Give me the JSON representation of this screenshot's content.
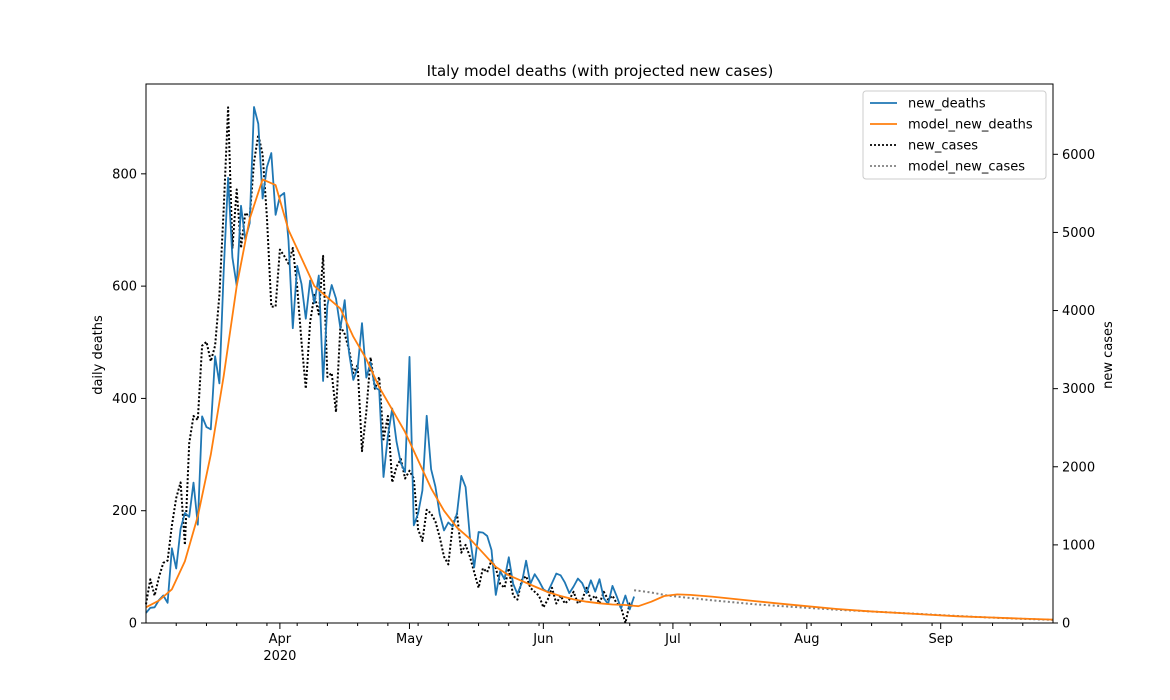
{
  "chart_data": {
    "type": "line",
    "title": "Italy model deaths (with projected new cases)",
    "ylabel": "daily deaths",
    "y2label": "new cases",
    "xlim": [
      "2020-03-01",
      "2020-09-27"
    ],
    "ylim": [
      0,
      960
    ],
    "y2lim": [
      0,
      6900
    ],
    "yticks": [
      0,
      200,
      400,
      600,
      800
    ],
    "y2ticks": [
      0,
      1000,
      2000,
      3000,
      4000,
      5000,
      6000
    ],
    "xticks": [
      {
        "date": "2020-04-01",
        "label": "Apr",
        "sublabel": "2020"
      },
      {
        "date": "2020-05-01",
        "label": "May"
      },
      {
        "date": "2020-06-01",
        "label": "Jun"
      },
      {
        "date": "2020-07-01",
        "label": "Jul"
      },
      {
        "date": "2020-08-01",
        "label": "Aug"
      },
      {
        "date": "2020-09-01",
        "label": "Sep"
      }
    ],
    "grid": false,
    "legend": {
      "position": "top-right",
      "entries": [
        "new_deaths",
        "model_new_deaths",
        "new_cases",
        "model_new_cases"
      ]
    },
    "colors": {
      "new_deaths": "#1f77b4",
      "model_new_deaths": "#ff7f0e",
      "new_cases": "#000000",
      "model_new_cases": "#808080"
    },
    "series": [
      {
        "name": "new_deaths",
        "axis": "left",
        "style": "solid",
        "x": [
          "2020-03-01",
          "2020-03-02",
          "2020-03-03",
          "2020-03-04",
          "2020-03-05",
          "2020-03-06",
          "2020-03-07",
          "2020-03-08",
          "2020-03-09",
          "2020-03-10",
          "2020-03-11",
          "2020-03-12",
          "2020-03-13",
          "2020-03-14",
          "2020-03-15",
          "2020-03-16",
          "2020-03-17",
          "2020-03-18",
          "2020-03-19",
          "2020-03-20",
          "2020-03-21",
          "2020-03-22",
          "2020-03-23",
          "2020-03-24",
          "2020-03-25",
          "2020-03-26",
          "2020-03-27",
          "2020-03-28",
          "2020-03-29",
          "2020-03-30",
          "2020-03-31",
          "2020-04-01",
          "2020-04-02",
          "2020-04-03",
          "2020-04-04",
          "2020-04-05",
          "2020-04-06",
          "2020-04-07",
          "2020-04-08",
          "2020-04-09",
          "2020-04-10",
          "2020-04-11",
          "2020-04-12",
          "2020-04-13",
          "2020-04-14",
          "2020-04-15",
          "2020-04-16",
          "2020-04-17",
          "2020-04-18",
          "2020-04-19",
          "2020-04-20",
          "2020-04-21",
          "2020-04-22",
          "2020-04-23",
          "2020-04-24",
          "2020-04-25",
          "2020-04-26",
          "2020-04-27",
          "2020-04-28",
          "2020-04-29",
          "2020-04-30",
          "2020-05-01",
          "2020-05-02",
          "2020-05-03",
          "2020-05-04",
          "2020-05-05",
          "2020-05-06",
          "2020-05-07",
          "2020-05-08",
          "2020-05-09",
          "2020-05-10",
          "2020-05-11",
          "2020-05-12",
          "2020-05-13",
          "2020-05-14",
          "2020-05-15",
          "2020-05-16",
          "2020-05-17",
          "2020-05-18",
          "2020-05-19",
          "2020-05-20",
          "2020-05-21",
          "2020-05-22",
          "2020-05-23",
          "2020-05-24",
          "2020-05-25",
          "2020-05-26",
          "2020-05-27",
          "2020-05-28",
          "2020-05-29",
          "2020-05-30",
          "2020-05-31",
          "2020-06-01",
          "2020-06-02",
          "2020-06-03",
          "2020-06-04",
          "2020-06-05",
          "2020-06-06",
          "2020-06-07",
          "2020-06-08",
          "2020-06-09",
          "2020-06-10",
          "2020-06-11",
          "2020-06-12",
          "2020-06-13",
          "2020-06-14",
          "2020-06-15",
          "2020-06-16",
          "2020-06-17",
          "2020-06-18",
          "2020-06-19",
          "2020-06-20",
          "2020-06-21",
          "2020-06-22"
        ],
        "values": [
          18,
          27,
          28,
          41,
          49,
          36,
          133,
          97,
          168,
          196,
          189,
          250,
          175,
          368,
          349,
          345,
          475,
          427,
          627,
          793,
          651,
          601,
          743,
          683,
          712,
          919,
          889,
          756,
          812,
          837,
          727,
          760,
          766,
          681,
          525,
          636,
          604,
          542,
          610,
          570,
          619,
          431,
          566,
          602,
          578,
          525,
          575,
          482,
          433,
          454,
          534,
          437,
          464,
          420,
          415,
          260,
          333,
          382,
          323,
          285,
          269,
          474,
          174,
          195,
          236,
          369,
          274,
          243,
          194,
          165,
          179,
          172,
          195,
          262,
          242,
          153,
          99,
          162,
          161,
          155,
          130,
          50,
          92,
          78,
          117,
          70,
          52,
          71,
          111,
          70,
          87,
          75,
          60,
          55,
          71,
          88,
          85,
          72,
          53,
          65,
          79,
          71,
          53,
          76,
          56,
          78,
          44,
          34,
          66,
          47,
          26,
          49,
          24,
          47
        ]
      },
      {
        "name": "model_new_deaths",
        "axis": "left",
        "style": "solid",
        "x": [
          "2020-03-01",
          "2020-03-04",
          "2020-03-07",
          "2020-03-10",
          "2020-03-13",
          "2020-03-16",
          "2020-03-19",
          "2020-03-22",
          "2020-03-25",
          "2020-03-28",
          "2020-03-31",
          "2020-04-03",
          "2020-04-06",
          "2020-04-09",
          "2020-04-12",
          "2020-04-15",
          "2020-04-18",
          "2020-04-21",
          "2020-04-24",
          "2020-04-27",
          "2020-04-30",
          "2020-05-03",
          "2020-05-06",
          "2020-05-09",
          "2020-05-12",
          "2020-05-15",
          "2020-05-18",
          "2020-05-21",
          "2020-05-24",
          "2020-05-27",
          "2020-05-30",
          "2020-06-02",
          "2020-06-05",
          "2020-06-08",
          "2020-06-11",
          "2020-06-14",
          "2020-06-17",
          "2020-06-20",
          "2020-06-23",
          "2020-06-26",
          "2020-06-29",
          "2020-07-02",
          "2020-07-05",
          "2020-07-10",
          "2020-07-15",
          "2020-07-20",
          "2020-07-25",
          "2020-08-01",
          "2020-08-08",
          "2020-08-15",
          "2020-08-22",
          "2020-08-29",
          "2020-09-05",
          "2020-09-12",
          "2020-09-19",
          "2020-09-27"
        ],
        "values": [
          28,
          40,
          60,
          110,
          190,
          300,
          440,
          600,
          720,
          790,
          780,
          700,
          650,
          600,
          580,
          560,
          510,
          470,
          420,
          380,
          340,
          290,
          240,
          200,
          170,
          150,
          125,
          100,
          85,
          75,
          65,
          55,
          48,
          42,
          38,
          35,
          33,
          32,
          30,
          38,
          48,
          51,
          50,
          47,
          43,
          39,
          35,
          30,
          25,
          21,
          18,
          15,
          12,
          10,
          8,
          6
        ]
      },
      {
        "name": "new_cases",
        "axis": "right",
        "style": "dotted",
        "x": [
          "2020-03-01",
          "2020-03-02",
          "2020-03-03",
          "2020-03-04",
          "2020-03-05",
          "2020-03-06",
          "2020-03-07",
          "2020-03-08",
          "2020-03-09",
          "2020-03-10",
          "2020-03-11",
          "2020-03-12",
          "2020-03-13",
          "2020-03-14",
          "2020-03-15",
          "2020-03-16",
          "2020-03-17",
          "2020-03-18",
          "2020-03-19",
          "2020-03-20",
          "2020-03-21",
          "2020-03-22",
          "2020-03-23",
          "2020-03-24",
          "2020-03-25",
          "2020-03-26",
          "2020-03-27",
          "2020-03-28",
          "2020-03-29",
          "2020-03-30",
          "2020-03-31",
          "2020-04-01",
          "2020-04-02",
          "2020-04-03",
          "2020-04-04",
          "2020-04-05",
          "2020-04-06",
          "2020-04-07",
          "2020-04-08",
          "2020-04-09",
          "2020-04-10",
          "2020-04-11",
          "2020-04-12",
          "2020-04-13",
          "2020-04-14",
          "2020-04-15",
          "2020-04-16",
          "2020-04-17",
          "2020-04-18",
          "2020-04-19",
          "2020-04-20",
          "2020-04-21",
          "2020-04-22",
          "2020-04-23",
          "2020-04-24",
          "2020-04-25",
          "2020-04-26",
          "2020-04-27",
          "2020-04-28",
          "2020-04-29",
          "2020-04-30",
          "2020-05-01",
          "2020-05-02",
          "2020-05-03",
          "2020-05-04",
          "2020-05-05",
          "2020-05-06",
          "2020-05-07",
          "2020-05-08",
          "2020-05-09",
          "2020-05-10",
          "2020-05-11",
          "2020-05-12",
          "2020-05-13",
          "2020-05-14",
          "2020-05-15",
          "2020-05-16",
          "2020-05-17",
          "2020-05-18",
          "2020-05-19",
          "2020-05-20",
          "2020-05-21",
          "2020-05-22",
          "2020-05-23",
          "2020-05-24",
          "2020-05-25",
          "2020-05-26",
          "2020-05-27",
          "2020-05-28",
          "2020-05-29",
          "2020-05-30",
          "2020-05-31",
          "2020-06-01",
          "2020-06-02",
          "2020-06-03",
          "2020-06-04",
          "2020-06-05",
          "2020-06-06",
          "2020-06-07",
          "2020-06-08",
          "2020-06-09",
          "2020-06-10",
          "2020-06-11",
          "2020-06-12",
          "2020-06-13",
          "2020-06-14",
          "2020-06-15",
          "2020-06-16",
          "2020-06-17",
          "2020-06-18",
          "2020-06-19",
          "2020-06-20",
          "2020-06-21",
          "2020-06-22"
        ],
        "values": [
          240,
          560,
          350,
          590,
          770,
          800,
          1250,
          1600,
          1800,
          1000,
          2300,
          2650,
          2600,
          3550,
          3600,
          3350,
          3550,
          4200,
          5300,
          6600,
          4800,
          5550,
          4800,
          5250,
          5200,
          5900,
          6250,
          6000,
          5200,
          4050,
          4050,
          4780,
          4700,
          4600,
          4800,
          4300,
          3600,
          3000,
          3850,
          4200,
          3950,
          4700,
          3150,
          3200,
          2700,
          3800,
          3700,
          3500,
          3200,
          3300,
          2200,
          2700,
          3400,
          3000,
          3150,
          2350,
          2650,
          1800,
          2000,
          2100,
          1850,
          1950,
          1850,
          1200,
          1050,
          1450,
          1400,
          1300,
          1100,
          850,
          750,
          1250,
          1400,
          900,
          1000,
          850,
          650,
          450,
          700,
          650,
          800,
          700,
          500,
          450,
          700,
          350,
          300,
          550,
          600,
          450,
          400,
          350,
          200,
          300,
          450,
          250,
          350,
          250,
          300,
          400,
          250,
          300,
          450,
          300,
          350,
          250,
          400,
          300,
          350,
          250,
          200,
          0,
          250,
          200
        ]
      },
      {
        "name": "model_new_cases",
        "axis": "right",
        "style": "dotted",
        "x": [
          "2020-06-22",
          "2020-06-26",
          "2020-06-30",
          "2020-07-05",
          "2020-07-10",
          "2020-07-15",
          "2020-07-20",
          "2020-07-25",
          "2020-08-01",
          "2020-08-08",
          "2020-08-15",
          "2020-08-22",
          "2020-08-29",
          "2020-09-05",
          "2020-09-12",
          "2020-09-19",
          "2020-09-27"
        ],
        "values": [
          420,
          390,
          350,
          320,
          290,
          265,
          240,
          220,
          195,
          170,
          150,
          130,
          110,
          90,
          70,
          55,
          40
        ]
      }
    ]
  }
}
